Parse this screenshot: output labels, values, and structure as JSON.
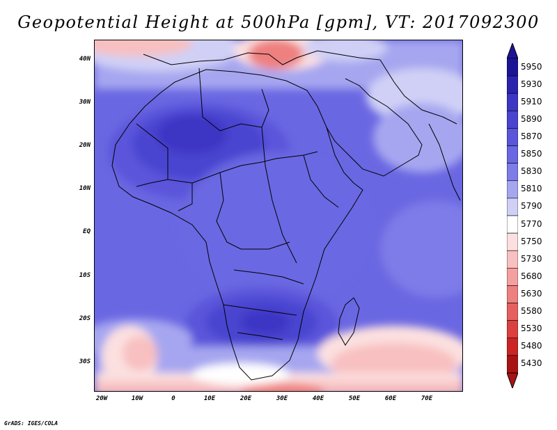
{
  "title": "Geopotential Height at 500hPa [gpm], VT: 2017092300",
  "credit": "GrADS: IGES/COLA",
  "y_ticks": [
    "40N",
    "30N",
    "20N",
    "10N",
    "EQ",
    "10S",
    "20S",
    "30S"
  ],
  "x_ticks": [
    "20W",
    "10W",
    "0",
    "10E",
    "20E",
    "30E",
    "40E",
    "50E",
    "60E",
    "70E"
  ],
  "colorbar": {
    "labels": [
      "5950",
      "5930",
      "5910",
      "5890",
      "5870",
      "5850",
      "5830",
      "5810",
      "5790",
      "5770",
      "5750",
      "5730",
      "5680",
      "5630",
      "5580",
      "5530",
      "5480",
      "5430"
    ],
    "colors": [
      "#1c1496",
      "#2a23b0",
      "#3d36c4",
      "#4a44d0",
      "#5a55da",
      "#6a67e2",
      "#7e7ce8",
      "#a6a6f0",
      "#d0d0f6",
      "#ffffff",
      "#fce0e0",
      "#f8c0c0",
      "#f4a0a0",
      "#ee8080",
      "#e66060",
      "#dc4040",
      "#cc2424",
      "#a81414"
    ],
    "top_arrow_color": "#1c1496",
    "bottom_arrow_color": "#a81414"
  },
  "map": {
    "region": "Africa and surroundings",
    "lon_range": [
      -22,
      80
    ],
    "lat_range": [
      -37,
      45
    ]
  }
}
